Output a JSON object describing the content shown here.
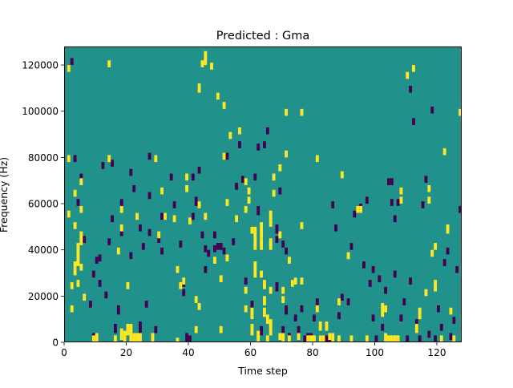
{
  "chart_data": {
    "type": "heatmap",
    "title": "Predicted : Gma",
    "xlabel": "Time step",
    "ylabel": "Frequency (Hz)",
    "xlim": [
      0,
      128
    ],
    "ylim": [
      0,
      128000
    ],
    "x_ticks": [
      0,
      20,
      40,
      60,
      80,
      100,
      120
    ],
    "y_ticks": [
      0,
      20000,
      40000,
      60000,
      80000,
      100000,
      120000
    ],
    "y_tick_labels": [
      "0",
      "20000",
      "40000",
      "60000",
      "80000",
      "100000",
      "120000"
    ],
    "grid": false,
    "legend": "none",
    "grid_size": {
      "time_steps": 128,
      "frequency_bins": 128,
      "bin_width_hz": 1000
    },
    "colormap": {
      "negative": "#440154",
      "neutral": "#21918c",
      "positive": "#fde725"
    },
    "value_levels": {
      "negative": -1,
      "neutral": 0,
      "positive": 1
    },
    "cells_positive": [
      [
        1,
        117,
        120
      ],
      [
        1,
        78,
        81
      ],
      [
        1,
        54,
        57
      ],
      [
        2,
        23,
        26
      ],
      [
        2,
        13,
        16
      ],
      [
        3,
        63,
        66
      ],
      [
        3,
        49,
        52
      ],
      [
        3,
        32,
        35
      ],
      [
        3,
        29,
        32
      ],
      [
        4,
        40,
        43
      ],
      [
        4,
        33,
        41
      ],
      [
        4,
        24,
        27
      ],
      [
        5,
        68,
        71
      ],
      [
        5,
        56,
        59
      ],
      [
        5,
        42,
        48
      ],
      [
        5,
        31,
        34
      ],
      [
        6,
        18,
        21
      ],
      [
        9,
        0,
        3
      ],
      [
        10,
        0,
        4
      ],
      [
        14,
        119,
        122
      ],
      [
        14,
        78,
        81
      ],
      [
        16,
        0,
        3
      ],
      [
        17,
        38,
        41
      ],
      [
        18,
        56,
        59
      ],
      [
        18,
        48,
        51
      ],
      [
        18,
        1,
        6
      ],
      [
        19,
        0,
        5
      ],
      [
        20,
        3,
        8
      ],
      [
        20,
        23,
        26
      ],
      [
        21,
        0,
        6
      ],
      [
        21,
        4,
        8
      ],
      [
        22,
        0,
        4
      ],
      [
        23,
        53,
        56
      ],
      [
        23,
        0,
        4
      ],
      [
        24,
        0,
        4
      ],
      [
        28,
        0,
        4
      ],
      [
        29,
        78,
        81
      ],
      [
        30,
        45,
        48
      ],
      [
        31,
        64,
        67
      ],
      [
        32,
        53,
        56
      ],
      [
        35,
        52,
        55
      ],
      [
        36,
        30,
        33
      ],
      [
        36,
        0,
        2
      ],
      [
        37,
        23,
        26
      ],
      [
        38,
        25,
        28
      ],
      [
        39,
        65,
        68
      ],
      [
        39,
        70,
        73
      ],
      [
        40,
        51,
        54
      ],
      [
        42,
        17,
        20
      ],
      [
        42,
        4,
        7
      ],
      [
        43,
        14,
        17
      ],
      [
        43,
        58,
        61
      ],
      [
        43,
        108,
        112
      ],
      [
        44,
        119,
        122
      ],
      [
        45,
        120,
        126
      ],
      [
        45,
        53,
        56
      ],
      [
        47,
        118,
        121
      ],
      [
        48,
        34,
        37
      ],
      [
        49,
        105,
        108
      ],
      [
        50,
        26,
        29
      ],
      [
        50,
        4,
        7
      ],
      [
        51,
        101,
        104
      ],
      [
        51,
        79,
        82
      ],
      [
        52,
        59,
        62
      ],
      [
        52,
        35,
        38
      ],
      [
        53,
        88,
        91
      ],
      [
        55,
        52,
        55
      ],
      [
        56,
        90,
        93
      ],
      [
        58,
        68,
        71
      ],
      [
        58,
        56,
        59
      ],
      [
        58,
        21,
        24
      ],
      [
        58,
        13,
        16
      ],
      [
        59,
        60,
        63
      ],
      [
        59,
        64,
        67
      ],
      [
        60,
        10,
        15
      ],
      [
        60,
        47,
        50
      ],
      [
        60,
        3,
        8
      ],
      [
        61,
        28,
        35
      ],
      [
        61,
        40,
        50
      ],
      [
        62,
        0,
        3
      ],
      [
        62,
        2,
        5
      ],
      [
        63,
        45,
        52
      ],
      [
        63,
        40,
        45
      ],
      [
        63,
        28,
        31
      ],
      [
        64,
        16,
        20
      ],
      [
        64,
        23,
        27
      ],
      [
        64,
        11,
        15
      ],
      [
        65,
        0,
        3
      ],
      [
        65,
        8,
        12
      ],
      [
        66,
        40,
        43
      ],
      [
        66,
        6,
        10
      ],
      [
        66,
        3,
        8
      ],
      [
        66,
        21,
        24
      ],
      [
        66,
        42,
        45
      ],
      [
        66,
        50,
        53
      ],
      [
        66,
        53,
        57
      ],
      [
        67,
        63,
        66
      ],
      [
        67,
        70,
        73
      ],
      [
        69,
        74,
        77
      ],
      [
        69,
        45,
        48
      ],
      [
        69,
        1,
        4
      ],
      [
        70,
        0,
        4
      ],
      [
        70,
        17,
        20
      ],
      [
        70,
        21,
        24
      ],
      [
        71,
        80,
        83
      ],
      [
        71,
        98,
        101
      ],
      [
        72,
        34,
        37
      ],
      [
        72,
        0,
        3
      ],
      [
        73,
        24,
        27
      ],
      [
        74,
        25,
        28
      ],
      [
        75,
        1,
        4
      ],
      [
        76,
        49,
        52
      ],
      [
        76,
        25,
        28
      ],
      [
        76,
        98,
        101
      ],
      [
        78,
        0,
        3
      ],
      [
        79,
        0,
        3
      ],
      [
        80,
        0,
        3
      ],
      [
        81,
        78,
        81
      ],
      [
        81,
        13,
        16
      ],
      [
        82,
        0,
        3
      ],
      [
        82,
        5,
        9
      ],
      [
        83,
        0,
        3
      ],
      [
        84,
        5,
        9
      ],
      [
        85,
        1,
        4
      ],
      [
        86,
        0,
        4
      ],
      [
        88,
        0,
        3
      ],
      [
        88,
        16,
        19
      ],
      [
        89,
        71,
        74
      ],
      [
        91,
        36,
        39
      ],
      [
        92,
        0,
        3
      ],
      [
        94,
        56,
        59
      ],
      [
        95,
        56,
        59
      ],
      [
        97,
        0,
        3
      ],
      [
        102,
        11,
        17
      ],
      [
        103,
        13,
        16
      ],
      [
        103,
        0,
        4
      ],
      [
        104,
        0,
        3
      ],
      [
        105,
        0,
        3
      ],
      [
        106,
        0,
        3
      ],
      [
        107,
        0,
        3
      ],
      [
        108,
        60,
        63
      ],
      [
        108,
        64,
        67
      ],
      [
        110,
        114,
        117
      ],
      [
        112,
        117,
        120
      ],
      [
        113,
        4,
        8
      ],
      [
        114,
        10,
        15
      ],
      [
        116,
        20,
        23
      ],
      [
        117,
        60,
        63
      ],
      [
        117,
        65,
        68
      ],
      [
        118,
        37,
        40
      ],
      [
        119,
        40,
        43
      ],
      [
        119,
        22,
        27
      ],
      [
        121,
        0,
        3
      ],
      [
        122,
        81,
        84
      ],
      [
        123,
        47,
        51
      ],
      [
        124,
        12,
        15
      ],
      [
        125,
        0,
        3
      ],
      [
        127,
        98,
        101
      ]
    ],
    "cells_negative": [
      [
        2,
        120,
        123
      ],
      [
        3,
        78,
        81
      ],
      [
        4,
        59,
        62
      ],
      [
        5,
        70,
        73
      ],
      [
        6,
        43,
        46
      ],
      [
        8,
        15,
        18
      ],
      [
        9,
        0,
        4
      ],
      [
        9,
        28,
        31
      ],
      [
        10,
        34,
        37
      ],
      [
        11,
        35,
        38
      ],
      [
        11,
        24,
        27
      ],
      [
        12,
        75,
        78
      ],
      [
        13,
        19,
        22
      ],
      [
        14,
        42,
        45
      ],
      [
        15,
        76,
        79
      ],
      [
        15,
        52,
        55
      ],
      [
        16,
        4,
        8
      ],
      [
        17,
        12,
        16
      ],
      [
        18,
        46,
        49
      ],
      [
        18,
        59,
        62
      ],
      [
        19,
        0,
        3
      ],
      [
        21,
        72,
        75
      ],
      [
        21,
        36,
        39
      ],
      [
        22,
        65,
        68
      ],
      [
        24,
        48,
        51
      ],
      [
        24,
        6,
        9
      ],
      [
        24,
        4,
        7
      ],
      [
        25,
        40,
        43
      ],
      [
        26,
        15,
        18
      ],
      [
        27,
        46,
        49
      ],
      [
        27,
        62,
        65
      ],
      [
        27,
        79,
        82
      ],
      [
        29,
        4,
        7
      ],
      [
        30,
        43,
        46
      ],
      [
        31,
        38,
        41
      ],
      [
        31,
        53,
        56
      ],
      [
        34,
        70,
        73
      ],
      [
        35,
        58,
        61
      ],
      [
        37,
        41,
        44
      ],
      [
        38,
        24,
        27
      ],
      [
        38,
        20,
        23
      ],
      [
        39,
        0,
        4
      ],
      [
        40,
        0,
        3
      ],
      [
        41,
        70,
        73
      ],
      [
        41,
        53,
        56
      ],
      [
        42,
        59,
        63
      ],
      [
        43,
        73,
        76
      ],
      [
        44,
        45,
        48
      ],
      [
        45,
        30,
        33
      ],
      [
        45,
        39,
        42
      ],
      [
        46,
        37,
        40
      ],
      [
        48,
        39,
        42
      ],
      [
        48,
        45,
        48
      ],
      [
        49,
        40,
        43
      ],
      [
        50,
        40,
        43
      ],
      [
        51,
        38,
        41
      ],
      [
        52,
        79,
        82
      ],
      [
        54,
        42,
        45
      ],
      [
        55,
        66,
        69
      ],
      [
        56,
        84,
        87
      ],
      [
        57,
        69,
        72
      ],
      [
        58,
        25,
        28
      ],
      [
        60,
        15,
        18
      ],
      [
        61,
        70,
        73
      ],
      [
        62,
        55,
        59
      ],
      [
        62,
        83,
        86
      ],
      [
        63,
        3,
        7
      ],
      [
        64,
        84,
        87
      ],
      [
        65,
        90,
        93
      ],
      [
        66,
        5,
        8
      ],
      [
        68,
        22,
        26
      ],
      [
        68,
        43,
        46
      ],
      [
        68,
        47,
        51
      ],
      [
        69,
        64,
        67
      ],
      [
        70,
        41,
        44
      ],
      [
        70,
        4,
        7
      ],
      [
        71,
        38,
        41
      ],
      [
        71,
        12,
        16
      ],
      [
        72,
        1,
        4
      ],
      [
        73,
        24,
        27
      ],
      [
        74,
        9,
        12
      ],
      [
        75,
        3,
        7
      ],
      [
        76,
        13,
        16
      ],
      [
        77,
        0,
        3
      ],
      [
        78,
        0,
        4
      ],
      [
        79,
        1,
        4
      ],
      [
        80,
        9,
        12
      ],
      [
        81,
        16,
        19
      ],
      [
        82,
        0,
        3
      ],
      [
        83,
        0,
        3
      ],
      [
        84,
        0,
        3
      ],
      [
        85,
        0,
        4
      ],
      [
        86,
        58,
        61
      ],
      [
        87,
        48,
        51
      ],
      [
        88,
        10,
        13
      ],
      [
        89,
        18,
        21
      ],
      [
        91,
        16,
        19
      ],
      [
        92,
        40,
        43
      ],
      [
        93,
        54,
        57
      ],
      [
        94,
        56,
        59
      ],
      [
        95,
        57,
        60
      ],
      [
        96,
        32,
        35
      ],
      [
        97,
        60,
        63
      ],
      [
        98,
        24,
        27
      ],
      [
        99,
        9,
        12
      ],
      [
        99,
        30,
        33
      ],
      [
        100,
        0,
        3
      ],
      [
        101,
        26,
        29
      ],
      [
        102,
        5,
        8
      ],
      [
        103,
        21,
        24
      ],
      [
        104,
        68,
        71
      ],
      [
        105,
        68,
        71
      ],
      [
        105,
        59,
        62
      ],
      [
        106,
        28,
        31
      ],
      [
        106,
        52,
        55
      ],
      [
        107,
        59,
        62
      ],
      [
        108,
        9,
        12
      ],
      [
        109,
        16,
        19
      ],
      [
        110,
        0,
        3
      ],
      [
        111,
        25,
        28
      ],
      [
        111,
        108,
        111
      ],
      [
        112,
        94,
        97
      ],
      [
        113,
        7,
        10
      ],
      [
        114,
        0,
        3
      ],
      [
        115,
        58,
        61
      ],
      [
        116,
        69,
        72
      ],
      [
        117,
        2,
        5
      ],
      [
        118,
        99,
        102
      ],
      [
        119,
        0,
        3
      ],
      [
        120,
        13,
        16
      ],
      [
        121,
        5,
        8
      ],
      [
        122,
        33,
        36
      ],
      [
        123,
        38,
        41
      ],
      [
        124,
        1,
        4
      ],
      [
        125,
        8,
        11
      ],
      [
        126,
        30,
        33
      ],
      [
        127,
        56,
        59
      ]
    ]
  }
}
